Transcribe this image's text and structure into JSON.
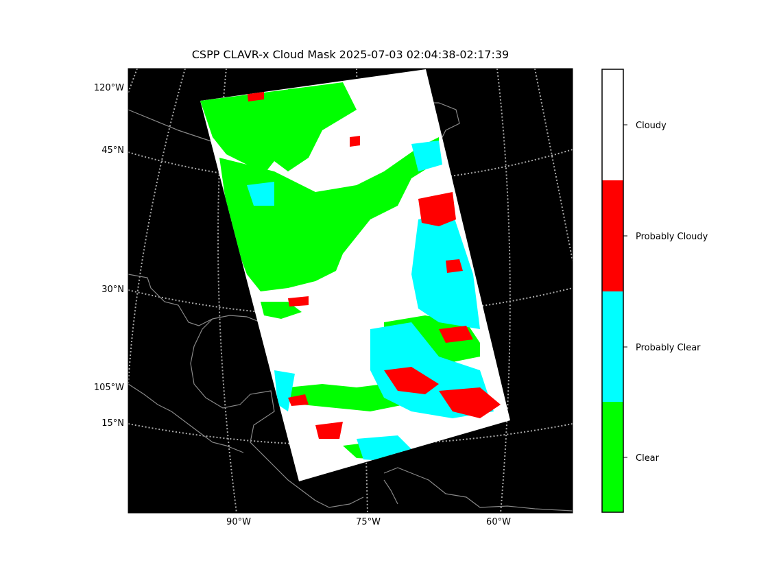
{
  "title": "CSPP CLAVR-x Cloud Mask 2025-07-03 02:04:38-02:17:39",
  "map": {
    "background_color": "#000000",
    "coastline_color": "#888888",
    "graticule_color": "#aaaaaa",
    "lat_labels": [
      {
        "id": "120w",
        "text": "120°W"
      },
      {
        "id": "45n",
        "text": "45°N"
      },
      {
        "id": "30n",
        "text": "30°N"
      },
      {
        "id": "105w",
        "text": "105°W"
      },
      {
        "id": "15n",
        "text": "15°N"
      }
    ],
    "lon_labels": [
      {
        "id": "90w",
        "text": "90°W"
      },
      {
        "id": "75w",
        "text": "75°W"
      },
      {
        "id": "60w",
        "text": "60°W"
      }
    ]
  },
  "colorbar": {
    "categories": [
      {
        "label": "Cloudy",
        "color": "#ffffff"
      },
      {
        "label": "Probably Cloudy",
        "color": "#ff0000"
      },
      {
        "label": "Probably Clear",
        "color": "#00ffff"
      },
      {
        "label": "Clear",
        "color": "#00ff00"
      }
    ]
  }
}
